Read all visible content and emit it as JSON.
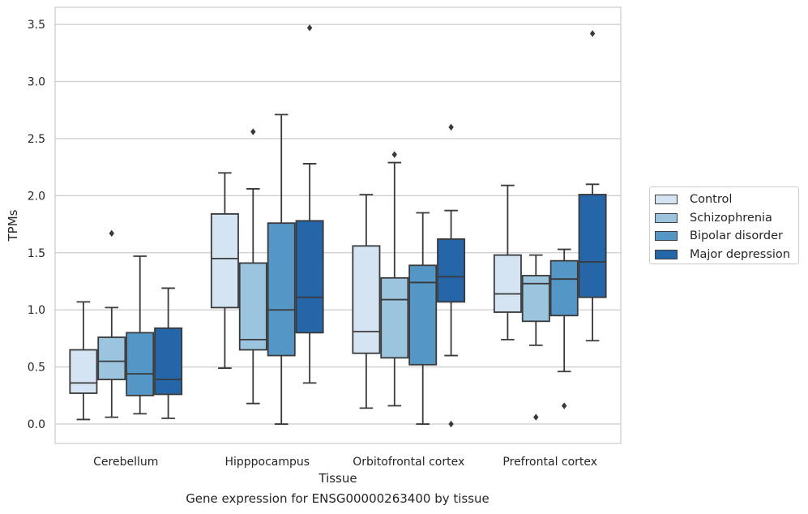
{
  "chart_data": {
    "type": "box",
    "title": "",
    "caption": "Gene expression for ENSG00000263400 by tissue",
    "xlabel": "Tissue",
    "ylabel": "TPMs",
    "ylim": [
      -0.17,
      3.65
    ],
    "yticks": [
      "0.0",
      "0.5",
      "1.0",
      "1.5",
      "2.0",
      "2.5",
      "3.0",
      "3.5"
    ],
    "grid": "horizontal",
    "legend_position": "right",
    "categories": [
      "Cerebellum",
      "Hipppocampus",
      "Orbitofrontal cortex",
      "Prefrontal cortex"
    ],
    "series": [
      {
        "name": "Control",
        "color": "#d4e4f3",
        "boxes": [
          {
            "whislo": 0.04,
            "q1": 0.27,
            "med": 0.36,
            "q3": 0.65,
            "whishi": 1.07,
            "fliers": []
          },
          {
            "whislo": 0.49,
            "q1": 1.02,
            "med": 1.45,
            "q3": 1.84,
            "whishi": 2.2,
            "fliers": []
          },
          {
            "whislo": 0.14,
            "q1": 0.62,
            "med": 0.81,
            "q3": 1.56,
            "whishi": 2.01,
            "fliers": []
          },
          {
            "whislo": 0.74,
            "q1": 0.98,
            "med": 1.14,
            "q3": 1.48,
            "whishi": 2.09,
            "fliers": []
          }
        ]
      },
      {
        "name": "Schizophrenia",
        "color": "#9bc5df",
        "boxes": [
          {
            "whislo": 0.06,
            "q1": 0.39,
            "med": 0.55,
            "q3": 0.76,
            "whishi": 1.02,
            "fliers": [
              1.67
            ]
          },
          {
            "whislo": 0.18,
            "q1": 0.65,
            "med": 0.74,
            "q3": 1.41,
            "whishi": 2.06,
            "fliers": [
              2.56
            ]
          },
          {
            "whislo": 0.16,
            "q1": 0.58,
            "med": 1.09,
            "q3": 1.28,
            "whishi": 2.29,
            "fliers": [
              2.36
            ]
          },
          {
            "whislo": 0.69,
            "q1": 0.9,
            "med": 1.23,
            "q3": 1.3,
            "whishi": 1.48,
            "fliers": [
              0.06
            ]
          }
        ]
      },
      {
        "name": "Bipolar disorder",
        "color": "#5497c7",
        "boxes": [
          {
            "whislo": 0.09,
            "q1": 0.25,
            "med": 0.44,
            "q3": 0.8,
            "whishi": 1.47,
            "fliers": []
          },
          {
            "whislo": 0.0,
            "q1": 0.6,
            "med": 1.0,
            "q3": 1.76,
            "whishi": 2.71,
            "fliers": []
          },
          {
            "whislo": 0.0,
            "q1": 0.52,
            "med": 1.24,
            "q3": 1.39,
            "whishi": 1.85,
            "fliers": []
          },
          {
            "whislo": 0.46,
            "q1": 0.95,
            "med": 1.27,
            "q3": 1.43,
            "whishi": 1.53,
            "fliers": [
              0.16
            ]
          }
        ]
      },
      {
        "name": "Major depression",
        "color": "#2466a8",
        "boxes": [
          {
            "whislo": 0.05,
            "q1": 0.26,
            "med": 0.39,
            "q3": 0.84,
            "whishi": 1.19,
            "fliers": []
          },
          {
            "whislo": 0.36,
            "q1": 0.8,
            "med": 1.11,
            "q3": 1.78,
            "whishi": 2.28,
            "fliers": [
              3.47
            ]
          },
          {
            "whislo": 0.6,
            "q1": 1.07,
            "med": 1.29,
            "q3": 1.62,
            "whishi": 1.87,
            "fliers": [
              2.6,
              0.0
            ]
          },
          {
            "whislo": 0.73,
            "q1": 1.11,
            "med": 1.42,
            "q3": 2.01,
            "whishi": 2.1,
            "fliers": [
              3.42
            ]
          }
        ]
      }
    ]
  }
}
